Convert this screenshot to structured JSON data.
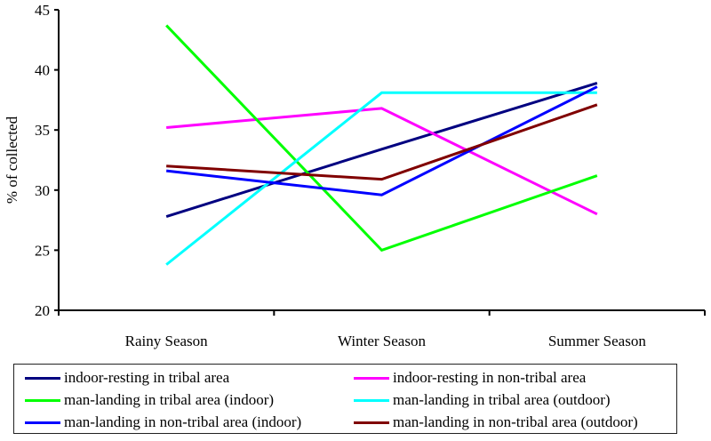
{
  "chart_data": {
    "type": "line",
    "title": "",
    "xlabel": "",
    "ylabel": "% of collected",
    "ylim": [
      20,
      45
    ],
    "yticks": [
      "20",
      "25",
      "30",
      "35",
      "40",
      "45"
    ],
    "categories": [
      "Rainy Season",
      "Winter Season",
      "Summer Season"
    ],
    "grid": false,
    "legend_position": "bottom",
    "series": [
      {
        "name": "indoor-resting in tribal area",
        "color": "#000080",
        "values": [
          27.8,
          33.4,
          38.9
        ]
      },
      {
        "name": "indoor-resting in non-tribal area",
        "color": "#ff00ff",
        "values": [
          35.2,
          36.8,
          28.0
        ]
      },
      {
        "name": "man-landing in tribal area (indoor)",
        "color": "#00ff00",
        "values": [
          43.7,
          25.0,
          31.2
        ]
      },
      {
        "name": "man-landing in tribal area (outdoor)",
        "color": "#00ffff",
        "values": [
          23.8,
          38.1,
          38.1
        ]
      },
      {
        "name": "man-landing in non-tribal area (indoor)",
        "color": "#0000ff",
        "values": [
          31.6,
          29.6,
          38.6
        ]
      },
      {
        "name": "man-landing in non-tribal area (outdoor)",
        "color": "#800000",
        "values": [
          32.0,
          30.9,
          37.1
        ]
      }
    ]
  }
}
